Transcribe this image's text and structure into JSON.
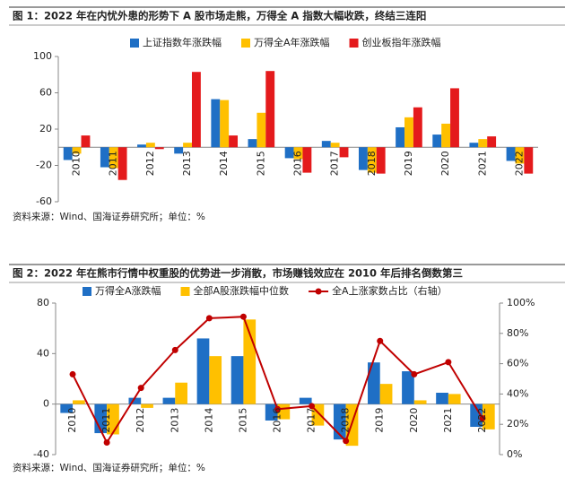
{
  "chart_data": [
    {
      "type": "bar",
      "title": "图 1：2022 年在内忧外患的形势下 A 股市场走熊，万得全 A 指数大幅收跌，终结三连阳",
      "source": "资料来源：Wind、国海证券研究所；单位：%",
      "categories": [
        "2010",
        "2011",
        "2012",
        "2013",
        "2014",
        "2015",
        "2016",
        "2017",
        "2018",
        "2019",
        "2020",
        "2021",
        "2022"
      ],
      "series": [
        {
          "name": "上证指数年涨跌幅",
          "color": "#1f6fc5",
          "values": [
            -14,
            -22,
            3,
            -7,
            53,
            9,
            -12,
            7,
            -25,
            22,
            14,
            5,
            -15
          ]
        },
        {
          "name": "万得全A年涨跌幅",
          "color": "#ffc000",
          "values": [
            -7,
            -23,
            5,
            5,
            52,
            38,
            -13,
            5,
            -28,
            33,
            26,
            9,
            -18
          ]
        },
        {
          "name": "创业板指年涨跌幅",
          "color": "#e41a1c",
          "values": [
            13,
            -36,
            -2,
            83,
            13,
            84,
            -28,
            -11,
            -29,
            44,
            65,
            12,
            -29
          ]
        }
      ],
      "ylim": [
        -60,
        100
      ],
      "yticks": [
        -60,
        -20,
        20,
        60,
        100
      ]
    },
    {
      "type": "bar",
      "title": "图 2：2022 年在熊市行情中权重股的优势进一步消散，市场赚钱效应在 2010 年后排名倒数第三",
      "source": "资料来源：Wind、国海证券研究所；单位：%",
      "categories": [
        "2010",
        "2011",
        "2012",
        "2013",
        "2014",
        "2015",
        "2016",
        "2017",
        "2018",
        "2019",
        "2020",
        "2021",
        "2022"
      ],
      "series": [
        {
          "name": "万得全A涨跌幅",
          "color": "#1f6fc5",
          "values": [
            -7,
            -23,
            5,
            5,
            52,
            38,
            -13,
            5,
            -28,
            33,
            26,
            9,
            -18
          ]
        },
        {
          "name": "全部A股涨跌幅中位数",
          "color": "#ffc000",
          "values": [
            3,
            -24,
            -3,
            17,
            38,
            67,
            -12,
            -17,
            -33,
            16,
            3,
            8,
            -20
          ]
        },
        {
          "name": "全A上涨家数占比（右轴）",
          "color": "#c00000",
          "type": "line",
          "axis": "y2",
          "values": [
            53,
            8,
            44,
            69,
            90,
            91,
            30,
            32,
            9,
            75,
            53,
            61,
            24
          ]
        }
      ],
      "ylim": [
        -40,
        80
      ],
      "yticks": [
        -40,
        0,
        40,
        80
      ],
      "y2lim": [
        0,
        100
      ],
      "y2ticks": [
        {
          "value": 0,
          "label": "0%"
        },
        {
          "value": 20,
          "label": "20%"
        },
        {
          "value": 40,
          "label": "40%"
        },
        {
          "value": 60,
          "label": "60%"
        },
        {
          "value": 80,
          "label": "80%"
        },
        {
          "value": 100,
          "label": "100%"
        }
      ]
    }
  ]
}
